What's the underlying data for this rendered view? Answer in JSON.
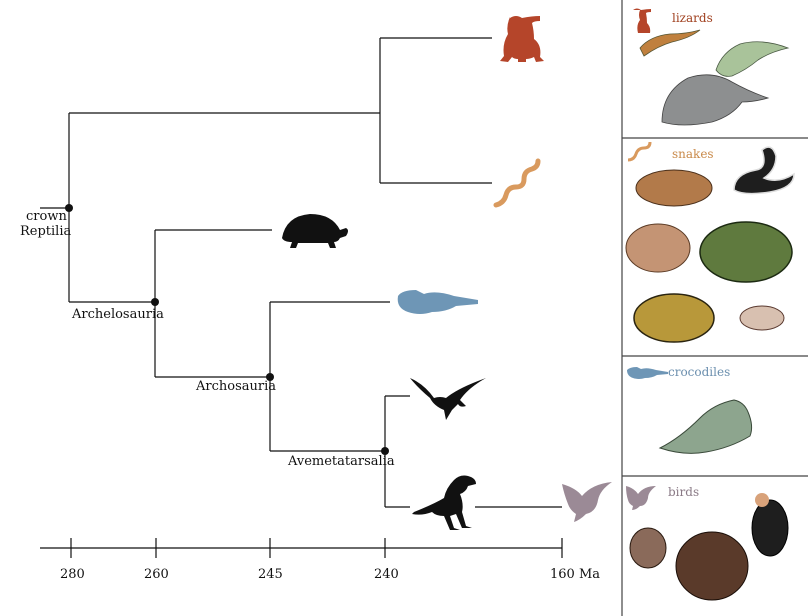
{
  "tree": {
    "node_labels": {
      "crown_line1": "crown",
      "crown_line2": "Reptilia",
      "archelosauria": "Archelosauria",
      "archosauria": "Archosauria",
      "avemetatarsalia": "Avemetatarsalia"
    },
    "timescale": {
      "ticks": [
        "280",
        "260",
        "245",
        "240",
        "160 Ma"
      ]
    }
  },
  "panels": [
    {
      "title": "lizards",
      "color": "#a0401f"
    },
    {
      "title": "snakes",
      "color": "#c98a4a"
    },
    {
      "title": "crocodiles",
      "color": "#6b8fae"
    },
    {
      "title": "birds",
      "color": "#8a7a86"
    }
  ],
  "silhouette_colors": {
    "lizard": "#b5452a",
    "snake": "#d99a5e",
    "turtle": "#111111",
    "crocodile": "#6e96b6",
    "pterosaur": "#111111",
    "dinosaur": "#111111",
    "bird": "#9b8a96"
  }
}
